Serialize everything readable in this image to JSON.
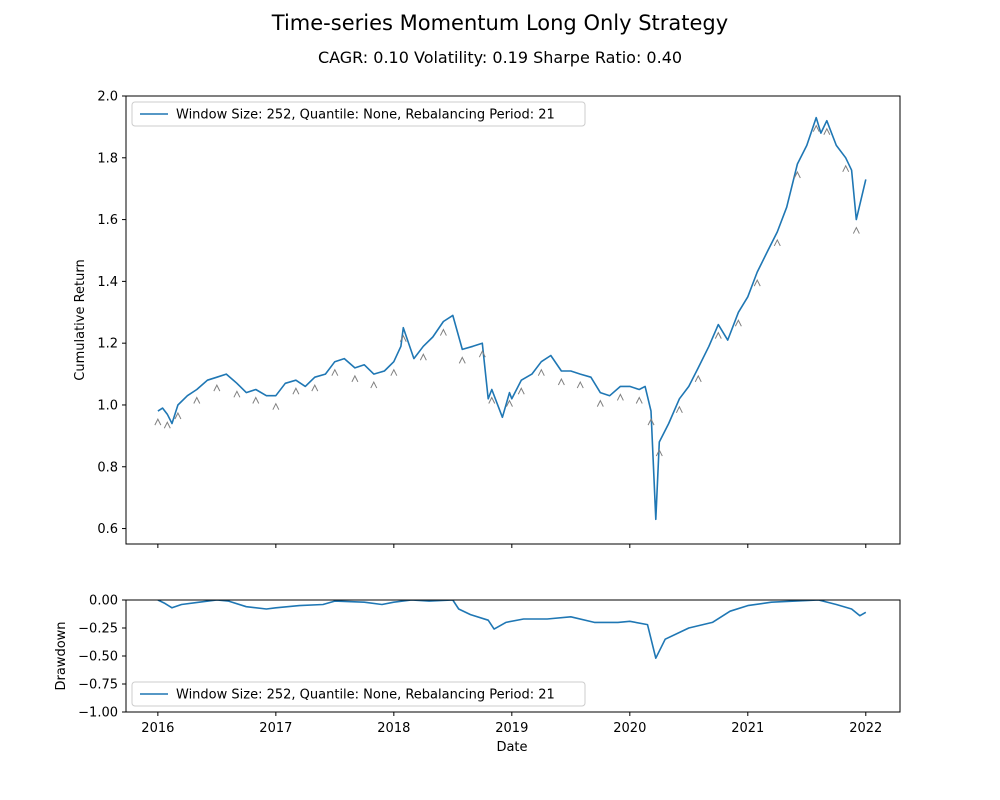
{
  "figure": {
    "title": "Time-series Momentum Long Only Strategy",
    "subtitle": "CAGR: 0.10 Volatility: 0.19 Sharpe Ratio: 0.40"
  },
  "colors": {
    "series": "#1f77b4",
    "markers": "#808080",
    "axis": "#000000"
  },
  "chart_data": [
    {
      "type": "line",
      "panel": "cumulative_return",
      "ylabel": "Cumulative Return",
      "xlabel": "",
      "ylim": [
        0.55,
        2.0
      ],
      "xlim": [
        2015.73,
        2022.29
      ],
      "yticks": [
        0.6,
        0.8,
        1.0,
        1.2,
        1.4,
        1.6,
        1.8,
        2.0
      ],
      "ytick_labels": [
        "0.6",
        "0.8",
        "1.0",
        "1.2",
        "1.4",
        "1.6",
        "1.8",
        "2.0"
      ],
      "xticks": [
        2016,
        2017,
        2018,
        2019,
        2020,
        2021,
        2022
      ],
      "legend": {
        "placement": "top-left",
        "entries": [
          "Window Size: 252, Quantile: None, Rebalancing Period: 21"
        ]
      },
      "series": [
        {
          "name": "Window Size: 252, Quantile: None, Rebalancing Period: 21",
          "x": [
            2016.0,
            2016.04,
            2016.08,
            2016.12,
            2016.17,
            2016.25,
            2016.33,
            2016.42,
            2016.5,
            2016.58,
            2016.67,
            2016.75,
            2016.83,
            2016.92,
            2017.0,
            2017.08,
            2017.17,
            2017.25,
            2017.33,
            2017.42,
            2017.5,
            2017.58,
            2017.67,
            2017.75,
            2017.83,
            2017.92,
            2018.0,
            2018.06,
            2018.08,
            2018.17,
            2018.25,
            2018.33,
            2018.42,
            2018.5,
            2018.58,
            2018.67,
            2018.75,
            2018.8,
            2018.83,
            2018.92,
            2018.98,
            2019.0,
            2019.08,
            2019.17,
            2019.25,
            2019.33,
            2019.42,
            2019.5,
            2019.58,
            2019.67,
            2019.75,
            2019.83,
            2019.92,
            2020.0,
            2020.08,
            2020.13,
            2020.18,
            2020.22,
            2020.25,
            2020.33,
            2020.42,
            2020.5,
            2020.58,
            2020.67,
            2020.75,
            2020.83,
            2020.92,
            2021.0,
            2021.08,
            2021.17,
            2021.25,
            2021.33,
            2021.42,
            2021.5,
            2021.58,
            2021.62,
            2021.67,
            2021.75,
            2021.83,
            2021.88,
            2021.92,
            2022.0
          ],
          "y": [
            0.98,
            0.99,
            0.97,
            0.94,
            1.0,
            1.03,
            1.05,
            1.08,
            1.09,
            1.1,
            1.07,
            1.04,
            1.05,
            1.03,
            1.03,
            1.07,
            1.08,
            1.06,
            1.09,
            1.1,
            1.14,
            1.15,
            1.12,
            1.13,
            1.1,
            1.11,
            1.14,
            1.19,
            1.25,
            1.15,
            1.19,
            1.22,
            1.27,
            1.29,
            1.18,
            1.19,
            1.2,
            1.02,
            1.05,
            0.96,
            1.04,
            1.02,
            1.08,
            1.1,
            1.14,
            1.16,
            1.11,
            1.11,
            1.1,
            1.09,
            1.04,
            1.03,
            1.06,
            1.06,
            1.05,
            1.06,
            0.98,
            0.63,
            0.88,
            0.94,
            1.02,
            1.06,
            1.12,
            1.19,
            1.26,
            1.21,
            1.3,
            1.35,
            1.43,
            1.5,
            1.56,
            1.64,
            1.78,
            1.84,
            1.93,
            1.88,
            1.92,
            1.84,
            1.8,
            1.76,
            1.6,
            1.73
          ]
        }
      ]
    },
    {
      "type": "line",
      "panel": "drawdown",
      "ylabel": "Drawdown",
      "xlabel": "Date",
      "ylim": [
        -1.0,
        0.0
      ],
      "xlim": [
        2015.73,
        2022.29
      ],
      "yticks": [
        -1.0,
        -0.75,
        -0.5,
        -0.25,
        0.0
      ],
      "ytick_labels": [
        "−1.00",
        "−0.75",
        "−0.50",
        "−0.25",
        "0.00"
      ],
      "xticks": [
        2016,
        2017,
        2018,
        2019,
        2020,
        2021,
        2022
      ],
      "xtick_labels": [
        "2016",
        "2017",
        "2018",
        "2019",
        "2020",
        "2021",
        "2022"
      ],
      "legend": {
        "placement": "bottom-left",
        "entries": [
          "Window Size: 252, Quantile: None, Rebalancing Period: 21"
        ]
      },
      "series": [
        {
          "name": "Window Size: 252, Quantile: None, Rebalancing Period: 21",
          "x": [
            2016.0,
            2016.06,
            2016.12,
            2016.2,
            2016.35,
            2016.5,
            2016.6,
            2016.75,
            2016.92,
            2017.0,
            2017.2,
            2017.4,
            2017.5,
            2017.75,
            2017.9,
            2018.0,
            2018.15,
            2018.3,
            2018.5,
            2018.55,
            2018.65,
            2018.8,
            2018.85,
            2018.95,
            2019.1,
            2019.3,
            2019.5,
            2019.7,
            2019.9,
            2020.0,
            2020.15,
            2020.22,
            2020.3,
            2020.5,
            2020.7,
            2020.85,
            2021.0,
            2021.2,
            2021.4,
            2021.6,
            2021.75,
            2021.88,
            2021.95,
            2022.0
          ],
          "y": [
            -0.0,
            -0.03,
            -0.07,
            -0.04,
            -0.02,
            0.0,
            -0.01,
            -0.06,
            -0.08,
            -0.07,
            -0.05,
            -0.04,
            -0.01,
            -0.02,
            -0.04,
            -0.02,
            0.0,
            -0.01,
            0.0,
            -0.08,
            -0.13,
            -0.18,
            -0.26,
            -0.2,
            -0.17,
            -0.17,
            -0.15,
            -0.2,
            -0.2,
            -0.19,
            -0.22,
            -0.52,
            -0.35,
            -0.25,
            -0.2,
            -0.1,
            -0.05,
            -0.02,
            -0.01,
            -0.0,
            -0.04,
            -0.08,
            -0.14,
            -0.11
          ]
        }
      ]
    }
  ]
}
